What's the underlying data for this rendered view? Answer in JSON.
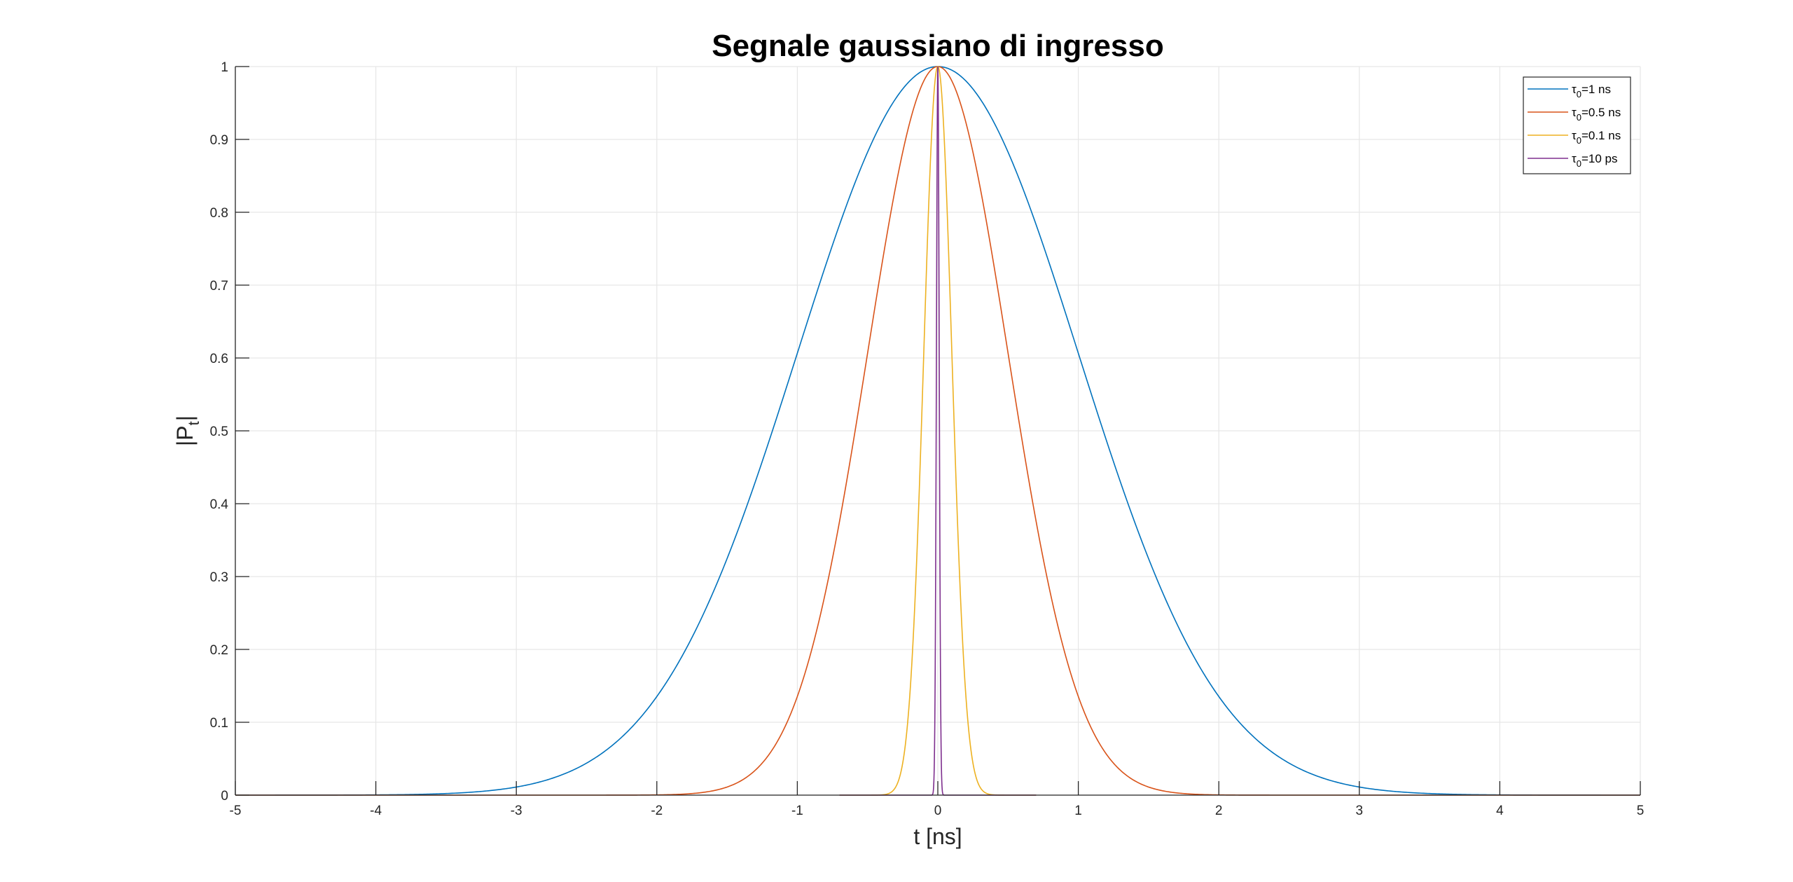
{
  "chart_data": {
    "type": "line",
    "title": "Segnale gaussiano di ingresso",
    "xlabel": "t [ns]",
    "ylabel": {
      "main": "|P",
      "sub": "t",
      "end": "|"
    },
    "xlim": [
      -5,
      5
    ],
    "ylim": [
      0,
      1
    ],
    "x_ticks": [
      -5,
      -4,
      -3,
      -2,
      -1,
      0,
      1,
      2,
      3,
      4,
      5
    ],
    "x_tick_labels": [
      "-5",
      "-4",
      "-3",
      "-2",
      "-1",
      "0",
      "1",
      "2",
      "3",
      "4",
      "5"
    ],
    "y_ticks": [
      0,
      0.1,
      0.2,
      0.3,
      0.4,
      0.5,
      0.6,
      0.7,
      0.8,
      0.9,
      1
    ],
    "y_tick_labels": [
      "0",
      "0.1",
      "0.2",
      "0.3",
      "0.4",
      "0.5",
      "0.6",
      "0.7",
      "0.8",
      "0.9",
      "1"
    ],
    "grid": true,
    "legend_position": "top-right",
    "series": [
      {
        "legend": {
          "sym": "τ",
          "sub": "0",
          "text": "=1 ns"
        },
        "color": "#0072BD",
        "tau": 1,
        "x_range": [
          -5,
          5
        ],
        "x": [
          -5,
          -4,
          -3.5,
          -3,
          -2.5,
          -2,
          -1.5,
          -1,
          -0.5,
          0,
          0.5,
          1,
          1.5,
          2,
          2.5,
          3,
          3.5,
          4,
          5
        ],
        "y": [
          0,
          0.0003,
          0.0022,
          0.0111,
          0.0439,
          0.1353,
          0.3247,
          0.6065,
          0.8825,
          1,
          0.8825,
          0.6065,
          0.3247,
          0.1353,
          0.0439,
          0.0111,
          0.0022,
          0.0003,
          0
        ]
      },
      {
        "legend": {
          "sym": "τ",
          "sub": "0",
          "text": "=0.5 ns"
        },
        "color": "#D95319",
        "tau": 0.5,
        "x_range": [
          -5,
          5
        ],
        "x": [
          -2,
          -1.5,
          -1,
          -0.75,
          -0.5,
          -0.25,
          0,
          0.25,
          0.5,
          0.75,
          1,
          1.5,
          2
        ],
        "y": [
          0,
          0.0111,
          0.1353,
          0.3247,
          0.6065,
          0.8825,
          1,
          0.8825,
          0.6065,
          0.3247,
          0.1353,
          0.0111,
          0
        ]
      },
      {
        "legend": {
          "sym": "τ",
          "sub": "0",
          "text": "=0.1 ns"
        },
        "color": "#EDB120",
        "tau": 0.1,
        "x_range": [
          -0.7,
          0.7
        ],
        "x": [
          -0.4,
          -0.3,
          -0.2,
          -0.1,
          0,
          0.1,
          0.2,
          0.3,
          0.4
        ],
        "y": [
          0,
          0.0111,
          0.1353,
          0.6065,
          1,
          0.6065,
          0.1353,
          0.0111,
          0
        ]
      },
      {
        "legend": {
          "sym": "τ",
          "sub": "0",
          "text": "=10 ps"
        },
        "color": "#7E2F8E",
        "tau": 0.01,
        "x_range": [
          -0.7,
          0.7
        ],
        "x": [
          -0.04,
          -0.03,
          -0.02,
          -0.01,
          0,
          0.01,
          0.02,
          0.03,
          0.04
        ],
        "y": [
          0,
          0.0111,
          0.1353,
          0.6065,
          1,
          0.6065,
          0.1353,
          0.0111,
          0
        ]
      }
    ]
  }
}
